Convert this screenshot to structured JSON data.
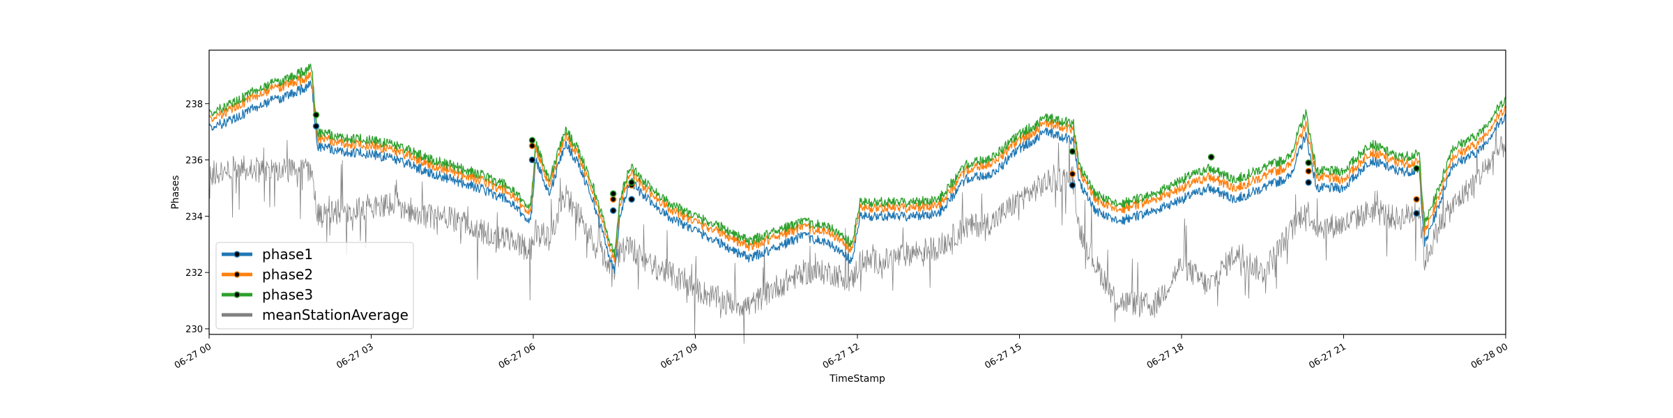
{
  "chart_data": {
    "type": "line",
    "title": "",
    "xlabel": "TimeStamp",
    "ylabel": "Phases",
    "x_range": [
      "2023-06-27T00:00",
      "2023-06-28T00:00"
    ],
    "x_tick_labels": [
      "06-27 00",
      "06-27 03",
      "06-27 06",
      "06-27 09",
      "06-27 12",
      "06-27 15",
      "06-27 18",
      "06-27 21",
      "06-28 00"
    ],
    "x_tick_hours": [
      0,
      3,
      6,
      9,
      12,
      15,
      18,
      21,
      24
    ],
    "ylim": [
      229.8,
      239.9
    ],
    "y_ticks": [
      230,
      232,
      234,
      236,
      238
    ],
    "grid": false,
    "legend_position": "lower-left",
    "series": [
      {
        "name": "phase1",
        "color": "#1f77b4",
        "x_hours": [
          0,
          0.5,
          1,
          1.5,
          1.9,
          2.0,
          2.5,
          3,
          3.5,
          4,
          4.5,
          5,
          5.5,
          5.95,
          6.05,
          6.3,
          6.6,
          6.85,
          7.1,
          7.5,
          7.6,
          7.8,
          8,
          8.5,
          9,
          9.5,
          10,
          10.5,
          11,
          11.5,
          11.9,
          12.05,
          12.5,
          13,
          13.5,
          14,
          14.5,
          15,
          15.5,
          16,
          16.1,
          16.4,
          16.8,
          17.5,
          18,
          18.5,
          19,
          19.5,
          20,
          20.3,
          20.5,
          21,
          21.5,
          22,
          22.4,
          22.5,
          22.8,
          23,
          23.5,
          24
        ],
        "values": [
          237.1,
          237.5,
          238.0,
          238.3,
          238.7,
          236.5,
          236.3,
          236.2,
          236.0,
          235.6,
          235.3,
          235.0,
          234.6,
          233.8,
          236.0,
          234.8,
          236.6,
          235.8,
          234.6,
          232.0,
          234.0,
          235.3,
          234.8,
          234.0,
          233.5,
          233.0,
          232.5,
          232.9,
          233.3,
          233.0,
          232.4,
          234.0,
          234.0,
          234.0,
          234.1,
          235.3,
          235.5,
          236.4,
          237.0,
          236.7,
          235.2,
          234.2,
          233.8,
          234.2,
          234.6,
          235.0,
          234.6,
          235.0,
          235.4,
          236.9,
          235.0,
          235.0,
          236.0,
          235.6,
          235.6,
          233.0,
          234.6,
          235.8,
          236.3,
          237.6
        ]
      },
      {
        "name": "phase2",
        "color": "#ff7f0e",
        "x_hours": [
          0,
          0.5,
          1,
          1.5,
          1.9,
          2.0,
          2.5,
          3,
          3.5,
          4,
          4.5,
          5,
          5.5,
          5.95,
          6.05,
          6.3,
          6.6,
          6.85,
          7.1,
          7.5,
          7.6,
          7.8,
          8,
          8.5,
          9,
          9.5,
          10,
          10.5,
          11,
          11.5,
          11.9,
          12.05,
          12.5,
          13,
          13.5,
          14,
          14.5,
          15,
          15.5,
          16,
          16.1,
          16.4,
          16.8,
          17.5,
          18,
          18.5,
          19,
          19.5,
          20,
          20.3,
          20.5,
          21,
          21.5,
          22,
          22.4,
          22.5,
          22.8,
          23,
          23.5,
          24
        ],
        "values": [
          237.4,
          237.9,
          238.4,
          238.7,
          239.0,
          236.8,
          236.6,
          236.5,
          236.3,
          235.9,
          235.6,
          235.3,
          234.9,
          234.1,
          236.4,
          235.1,
          236.9,
          236.1,
          234.9,
          232.4,
          234.4,
          235.6,
          235.1,
          234.3,
          233.8,
          233.4,
          232.9,
          233.3,
          233.6,
          233.4,
          232.8,
          234.3,
          234.3,
          234.3,
          234.4,
          235.6,
          235.9,
          236.7,
          237.3,
          237.1,
          235.6,
          234.6,
          234.2,
          234.6,
          235.0,
          235.4,
          235.0,
          235.4,
          235.8,
          237.3,
          235.4,
          235.3,
          236.3,
          235.9,
          235.9,
          233.4,
          234.9,
          236.1,
          236.6,
          237.9
        ]
      },
      {
        "name": "phase3",
        "color": "#2ca02c",
        "x_hours": [
          0,
          0.5,
          1,
          1.5,
          1.9,
          2.0,
          2.5,
          3,
          3.5,
          4,
          4.5,
          5,
          5.5,
          5.95,
          6.05,
          6.3,
          6.6,
          6.85,
          7.1,
          7.5,
          7.6,
          7.8,
          8,
          8.5,
          9,
          9.5,
          10,
          10.5,
          11,
          11.5,
          11.9,
          12.05,
          12.5,
          13,
          13.5,
          14,
          14.5,
          15,
          15.5,
          16,
          16.1,
          16.4,
          16.8,
          17.5,
          18,
          18.5,
          19,
          19.5,
          20,
          20.3,
          20.5,
          21,
          21.5,
          22,
          22.4,
          22.5,
          22.8,
          23,
          23.5,
          24
        ],
        "values": [
          237.6,
          238.1,
          238.6,
          238.9,
          239.3,
          237.0,
          236.8,
          236.7,
          236.5,
          236.1,
          235.8,
          235.5,
          235.1,
          234.3,
          236.6,
          235.3,
          237.1,
          236.3,
          235.1,
          232.6,
          234.6,
          235.8,
          235.3,
          234.5,
          234.0,
          233.6,
          233.1,
          233.5,
          233.8,
          233.6,
          233.0,
          234.5,
          234.5,
          234.5,
          234.6,
          235.8,
          236.1,
          236.9,
          237.5,
          237.3,
          235.8,
          234.8,
          234.4,
          234.8,
          235.3,
          235.7,
          235.3,
          235.7,
          236.1,
          237.7,
          235.6,
          235.6,
          236.6,
          236.1,
          236.2,
          233.7,
          235.2,
          236.4,
          236.9,
          238.2
        ]
      },
      {
        "name": "meanStationAverage",
        "color": "#808080",
        "x_hours": [
          0,
          0.5,
          1,
          1.5,
          1.9,
          2.0,
          2.5,
          3,
          3.5,
          4,
          4.5,
          5,
          5.5,
          5.95,
          6.05,
          6.3,
          6.6,
          6.85,
          7.1,
          7.5,
          7.6,
          7.8,
          8,
          8.5,
          9,
          9.5,
          10,
          10.5,
          11,
          11.5,
          11.9,
          12.05,
          12.5,
          13,
          13.5,
          14,
          14.5,
          15,
          15.5,
          16,
          16.1,
          16.4,
          16.8,
          17.5,
          18,
          18.5,
          19,
          19.5,
          20,
          20.3,
          20.5,
          21,
          21.5,
          22,
          22.4,
          22.5,
          22.8,
          23,
          23.5,
          24
        ],
        "values": [
          235.5,
          235.8,
          235.6,
          235.6,
          235.7,
          234.0,
          234.2,
          234.3,
          234.4,
          234.0,
          233.9,
          233.5,
          233.2,
          232.8,
          233.5,
          233.2,
          234.8,
          234.0,
          233.2,
          232.1,
          232.8,
          233.0,
          232.4,
          232.0,
          231.4,
          231.0,
          230.8,
          231.5,
          232.0,
          232.0,
          231.7,
          232.4,
          232.4,
          232.7,
          232.9,
          233.6,
          233.8,
          234.6,
          235.2,
          235.4,
          233.6,
          232.3,
          231.0,
          230.8,
          232.3,
          231.5,
          232.7,
          232.0,
          233.4,
          234.3,
          233.6,
          233.7,
          234.2,
          233.9,
          234.2,
          232.4,
          233.8,
          234.3,
          235.4,
          236.6
        ]
      }
    ],
    "markers": {
      "x_hours": [
        1.98,
        5.98,
        7.48,
        7.82,
        15.98,
        18.55,
        20.35,
        22.35
      ],
      "phase1": [
        237.2,
        236.0,
        234.2,
        234.6,
        235.1,
        236.1,
        235.2,
        234.1
      ],
      "phase2": [
        237.6,
        236.5,
        234.6,
        235.1,
        235.5,
        236.1,
        235.6,
        234.6
      ],
      "phase3": [
        237.6,
        236.7,
        234.8,
        235.2,
        236.3,
        236.1,
        235.9,
        235.7
      ]
    }
  }
}
